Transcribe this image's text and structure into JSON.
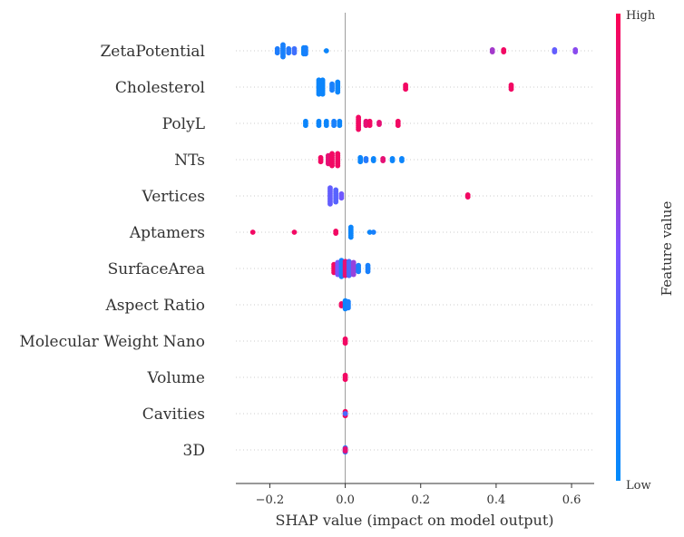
{
  "chart_data": {
    "type": "scatter",
    "subtype": "beeswarm",
    "xlabel": "SHAP value (impact on model output)",
    "xlim": [
      -0.29,
      0.66
    ],
    "x_ticks": [
      -0.2,
      0.0,
      0.2,
      0.4,
      0.6
    ],
    "x_tick_labels": [
      "−0.2",
      "0.0",
      "0.2",
      "0.4",
      "0.6"
    ],
    "grid": "horizontal dotted lines per feature",
    "colorbar": {
      "title": "Feature value",
      "high_label": "High",
      "low_label": "Low",
      "low_color": "#008bfb",
      "mid_color": "#7c52ff",
      "high_color": "#ff0052"
    },
    "features": [
      {
        "name": "ZetaPotential",
        "points": [
          {
            "x": -0.18,
            "v": 0.12,
            "w": 3
          },
          {
            "x": -0.165,
            "v": 0.1,
            "w": 7
          },
          {
            "x": -0.15,
            "v": 0.15,
            "w": 3
          },
          {
            "x": -0.135,
            "v": 0.25,
            "w": 3
          },
          {
            "x": -0.11,
            "v": 0.05,
            "w": 4
          },
          {
            "x": -0.105,
            "v": 0.1,
            "w": 4
          },
          {
            "x": -0.05,
            "v": 0.05,
            "w": 1
          },
          {
            "x": 0.39,
            "v": 0.65,
            "w": 2
          },
          {
            "x": 0.42,
            "v": 0.95,
            "w": 2
          },
          {
            "x": 0.555,
            "v": 0.4,
            "w": 2
          },
          {
            "x": 0.61,
            "v": 0.55,
            "w": 2
          }
        ]
      },
      {
        "name": "Cholesterol",
        "points": [
          {
            "x": -0.07,
            "v": 0.05,
            "w": 8
          },
          {
            "x": -0.06,
            "v": 0.05,
            "w": 8
          },
          {
            "x": -0.035,
            "v": 0.1,
            "w": 4
          },
          {
            "x": -0.02,
            "v": 0.05,
            "w": 6
          },
          {
            "x": 0.16,
            "v": 0.95,
            "w": 3
          },
          {
            "x": 0.44,
            "v": 0.95,
            "w": 3
          }
        ]
      },
      {
        "name": "PolyL",
        "points": [
          {
            "x": -0.105,
            "v": 0.05,
            "w": 3
          },
          {
            "x": -0.07,
            "v": 0.05,
            "w": 3
          },
          {
            "x": -0.05,
            "v": 0.05,
            "w": 3
          },
          {
            "x": -0.03,
            "v": 0.1,
            "w": 3
          },
          {
            "x": -0.015,
            "v": 0.05,
            "w": 3
          },
          {
            "x": 0.035,
            "v": 0.95,
            "w": 7
          },
          {
            "x": 0.055,
            "v": 0.9,
            "w": 3
          },
          {
            "x": 0.065,
            "v": 0.95,
            "w": 3
          },
          {
            "x": 0.09,
            "v": 0.9,
            "w": 2
          },
          {
            "x": 0.14,
            "v": 0.95,
            "w": 3
          }
        ]
      },
      {
        "name": "NTs",
        "points": [
          {
            "x": -0.065,
            "v": 0.95,
            "w": 3
          },
          {
            "x": -0.045,
            "v": 0.9,
            "w": 5
          },
          {
            "x": -0.035,
            "v": 0.95,
            "w": 7
          },
          {
            "x": -0.02,
            "v": 0.95,
            "w": 7
          },
          {
            "x": 0.04,
            "v": 0.05,
            "w": 3
          },
          {
            "x": 0.055,
            "v": 0.15,
            "w": 2
          },
          {
            "x": 0.075,
            "v": 0.05,
            "w": 2
          },
          {
            "x": 0.1,
            "v": 0.9,
            "w": 2
          },
          {
            "x": 0.125,
            "v": 0.05,
            "w": 2
          },
          {
            "x": 0.15,
            "v": 0.05,
            "w": 2
          }
        ]
      },
      {
        "name": "Vertices",
        "points": [
          {
            "x": -0.04,
            "v": 0.4,
            "w": 9
          },
          {
            "x": -0.025,
            "v": 0.35,
            "w": 7
          },
          {
            "x": -0.01,
            "v": 0.45,
            "w": 3
          },
          {
            "x": 0.325,
            "v": 0.95,
            "w": 2
          }
        ]
      },
      {
        "name": "Aptamers",
        "points": [
          {
            "x": -0.245,
            "v": 0.95,
            "w": 1
          },
          {
            "x": -0.135,
            "v": 0.95,
            "w": 1
          },
          {
            "x": -0.025,
            "v": 0.95,
            "w": 2
          },
          {
            "x": 0.015,
            "v": 0.05,
            "w": 6
          },
          {
            "x": 0.065,
            "v": 0.05,
            "w": 1
          },
          {
            "x": 0.075,
            "v": 0.1,
            "w": 1
          }
        ]
      },
      {
        "name": "SurfaceArea",
        "points": [
          {
            "x": -0.03,
            "v": 0.95,
            "w": 5
          },
          {
            "x": -0.02,
            "v": 0.5,
            "w": 7
          },
          {
            "x": -0.01,
            "v": 0.1,
            "w": 9
          },
          {
            "x": 0.0,
            "v": 0.9,
            "w": 8
          },
          {
            "x": 0.01,
            "v": 0.3,
            "w": 8
          },
          {
            "x": 0.022,
            "v": 0.6,
            "w": 7
          },
          {
            "x": 0.035,
            "v": 0.1,
            "w": 4
          },
          {
            "x": 0.06,
            "v": 0.1,
            "w": 4
          }
        ]
      },
      {
        "name": "Aspect Ratio",
        "points": [
          {
            "x": -0.01,
            "v": 0.95,
            "w": 2
          },
          {
            "x": 0.0,
            "v": 0.05,
            "w": 5
          },
          {
            "x": 0.008,
            "v": 0.1,
            "w": 4
          }
        ]
      },
      {
        "name": "Molecular Weight Nano",
        "points": [
          {
            "x": 0.0,
            "v": 0.95,
            "w": 3
          }
        ]
      },
      {
        "name": "Volume",
        "points": [
          {
            "x": 0.0,
            "v": 0.95,
            "w": 3
          }
        ]
      },
      {
        "name": "Cavities",
        "points": [
          {
            "x": 0.0,
            "v": 0.95,
            "w": 3
          },
          {
            "x": 0.0,
            "v": 0.3,
            "w": 1
          }
        ]
      },
      {
        "name": "3D",
        "points": [
          {
            "x": 0.0,
            "v": 0.2,
            "w": 3
          },
          {
            "x": 0.0,
            "v": 0.9,
            "w": 2
          }
        ]
      }
    ]
  }
}
